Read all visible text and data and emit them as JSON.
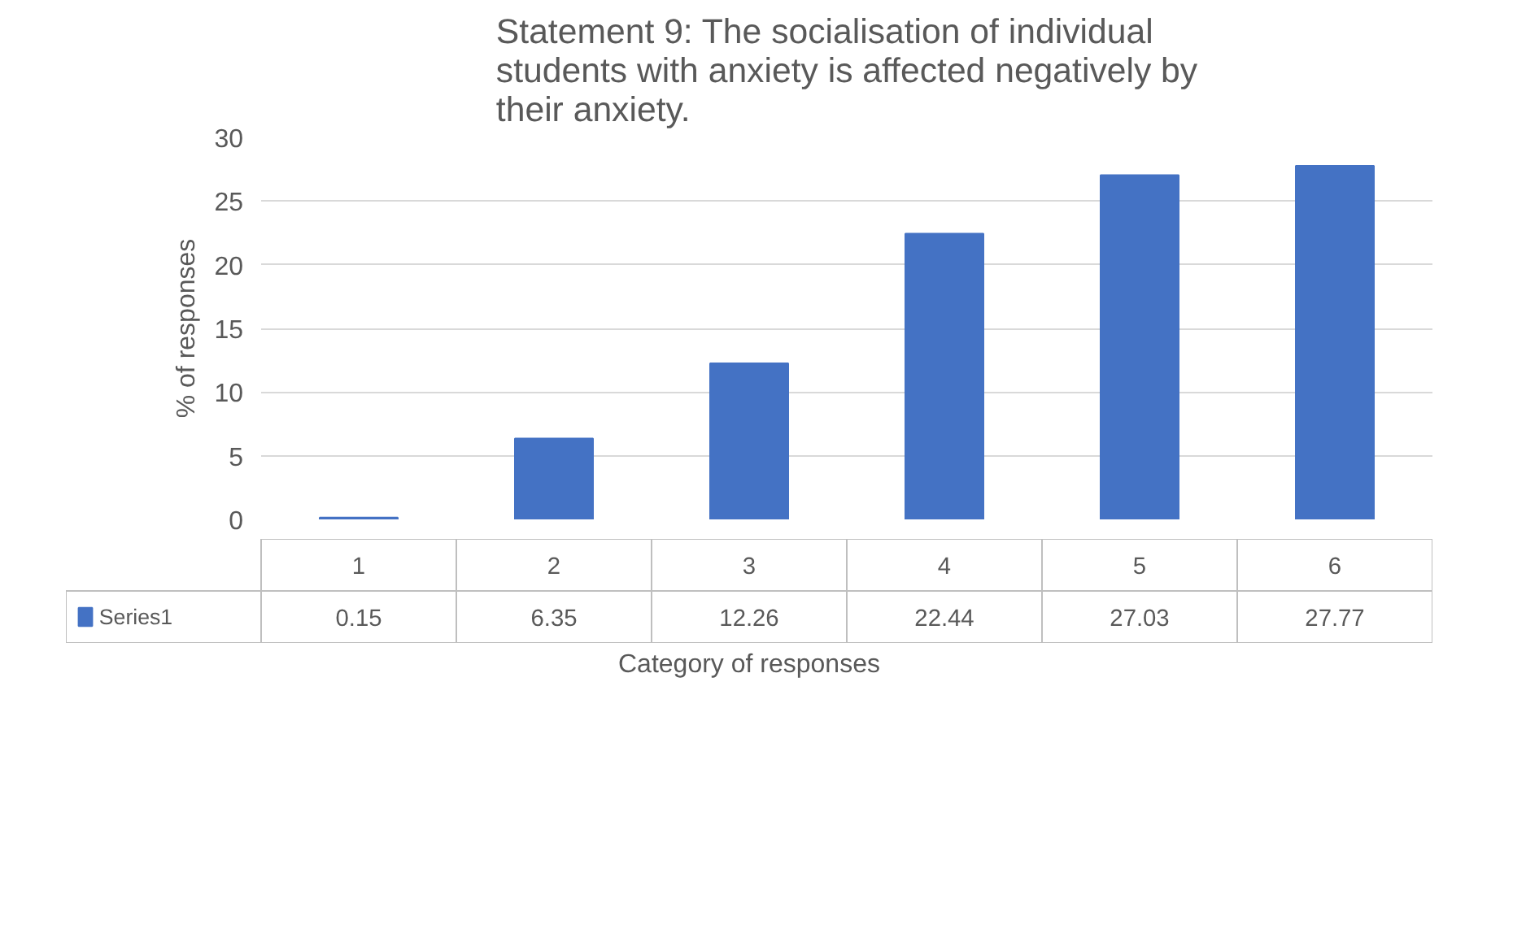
{
  "chart_data": {
    "type": "bar",
    "title": "Statement 9: The socialisation of individual students with anxiety is affected negatively by their anxiety.",
    "xlabel": "Category of responses",
    "ylabel": "% of responses",
    "categories": [
      "1",
      "2",
      "3",
      "4",
      "5",
      "6"
    ],
    "series": [
      {
        "name": "Series1",
        "color": "#4472c4",
        "values": [
          0.15,
          6.35,
          12.26,
          22.44,
          27.03,
          27.77
        ]
      }
    ],
    "ylim": [
      0,
      30
    ],
    "yticks": [
      0,
      5,
      10,
      15,
      20,
      25,
      30
    ],
    "grid": "y",
    "data_labels": true
  }
}
